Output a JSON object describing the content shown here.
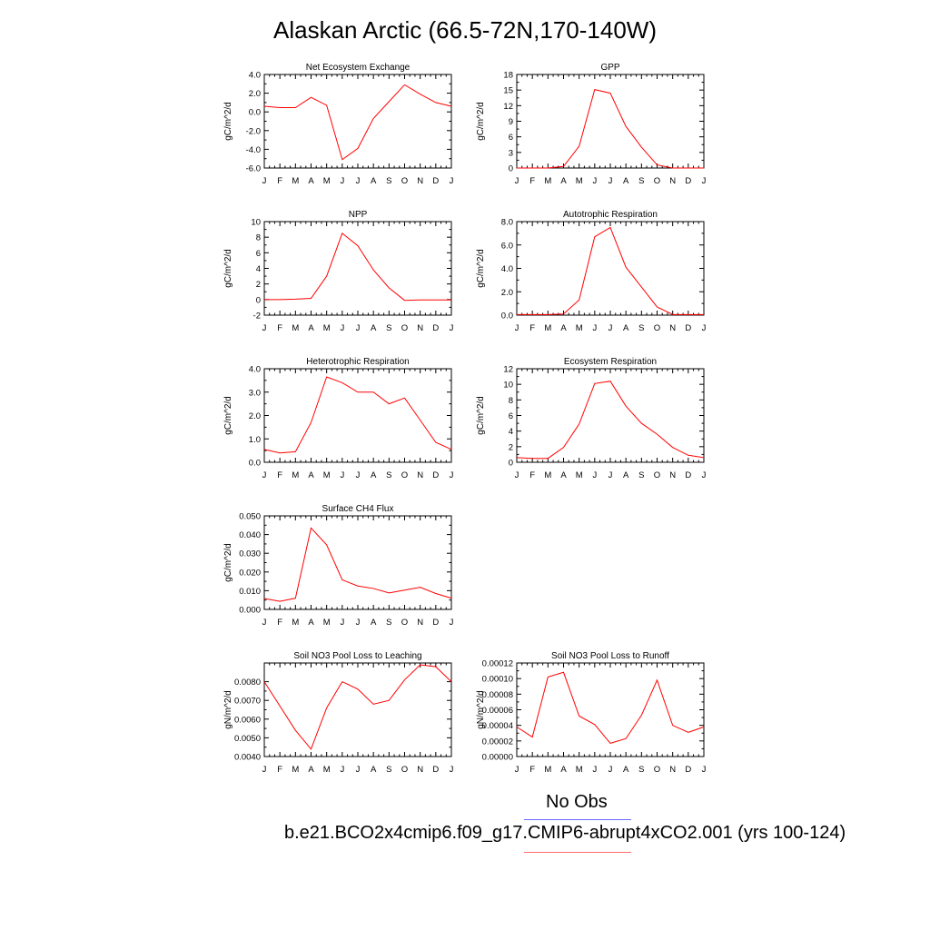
{
  "title": "Alaskan Arctic (66.5-72N,170-140W)",
  "legend": {
    "obs_label": "No Obs",
    "model_label": "b.e21.BCO2x4cmip6.f09_g17.CMIP6-abrupt4xCO2.001 (yrs 100-124)",
    "obs_color": "#6b6bff",
    "model_color": "#ff6b6b"
  },
  "series_color": "#ff0000",
  "chart_data": [
    {
      "type": "line",
      "title": "Net Ecosystem Exchange",
      "ylabel": "gC/m^2/d",
      "x": [
        "J",
        "F",
        "M",
        "A",
        "M",
        "J",
        "J",
        "A",
        "S",
        "O",
        "N",
        "D",
        "J"
      ],
      "values": [
        0.6,
        0.45,
        0.45,
        1.55,
        0.7,
        -5.1,
        -3.9,
        -0.7,
        1.1,
        2.9,
        1.9,
        1.0,
        0.6
      ],
      "ylim": [
        -6.0,
        4.0
      ],
      "yticks": [
        "-6.0",
        "-4.0",
        "-2.0",
        "0.0",
        "2.0",
        "4.0"
      ],
      "ytick_values": [
        -6,
        -4,
        -2,
        0,
        2,
        4
      ]
    },
    {
      "type": "line",
      "title": "GPP",
      "ylabel": "gC/m^2/d",
      "x": [
        "J",
        "F",
        "M",
        "A",
        "M",
        "J",
        "J",
        "A",
        "S",
        "O",
        "N",
        "D",
        "J"
      ],
      "values": [
        0.0,
        0.0,
        0.0,
        0.3,
        4.2,
        15.1,
        14.4,
        8.0,
        4.0,
        0.6,
        0.0,
        0.0,
        0.0
      ],
      "ylim": [
        0,
        18
      ],
      "yticks": [
        "0",
        "3",
        "6",
        "9",
        "12",
        "15",
        "18"
      ],
      "ytick_values": [
        0,
        3,
        6,
        9,
        12,
        15,
        18
      ]
    },
    {
      "type": "line",
      "title": "NPP",
      "ylabel": "gC/m^2/d",
      "x": [
        "J",
        "F",
        "M",
        "A",
        "M",
        "J",
        "J",
        "A",
        "S",
        "O",
        "N",
        "D",
        "J"
      ],
      "values": [
        0.0,
        0.0,
        0.05,
        0.15,
        3.0,
        8.5,
        6.9,
        3.8,
        1.5,
        -0.1,
        -0.05,
        -0.05,
        -0.05
      ],
      "ylim": [
        -2,
        10
      ],
      "yticks": [
        "-2",
        "0",
        "2",
        "4",
        "6",
        "8",
        "10"
      ],
      "ytick_values": [
        -2,
        0,
        2,
        4,
        6,
        8,
        10
      ]
    },
    {
      "type": "line",
      "title": "Autotrophic Respiration",
      "ylabel": "gC/m^2/d",
      "x": [
        "J",
        "F",
        "M",
        "A",
        "M",
        "J",
        "J",
        "A",
        "S",
        "O",
        "N",
        "D",
        "J"
      ],
      "values": [
        0.05,
        0.05,
        0.05,
        0.1,
        1.3,
        6.7,
        7.5,
        4.1,
        2.4,
        0.7,
        0.05,
        0.05,
        0.05
      ],
      "ylim": [
        0,
        8
      ],
      "yticks": [
        "0.0",
        "2.0",
        "4.0",
        "6.0",
        "8.0"
      ],
      "ytick_values": [
        0,
        2,
        4,
        6,
        8
      ]
    },
    {
      "type": "line",
      "title": "Heterotrophic Respiration",
      "ylabel": "gC/m^2/d",
      "x": [
        "J",
        "F",
        "M",
        "A",
        "M",
        "J",
        "J",
        "A",
        "S",
        "O",
        "N",
        "D",
        "J"
      ],
      "values": [
        0.55,
        0.4,
        0.45,
        1.7,
        3.65,
        3.4,
        3.0,
        3.0,
        2.5,
        2.75,
        1.8,
        0.85,
        0.55
      ],
      "ylim": [
        0,
        4
      ],
      "yticks": [
        "0.0",
        "1.0",
        "2.0",
        "3.0",
        "4.0"
      ],
      "ytick_values": [
        0,
        1,
        2,
        3,
        4
      ]
    },
    {
      "type": "line",
      "title": "Ecosystem Respiration",
      "ylabel": "gC/m^2/d",
      "x": [
        "J",
        "F",
        "M",
        "A",
        "M",
        "J",
        "J",
        "A",
        "S",
        "O",
        "N",
        "D",
        "J"
      ],
      "values": [
        0.6,
        0.5,
        0.5,
        1.9,
        4.9,
        10.1,
        10.4,
        7.2,
        5.0,
        3.6,
        1.9,
        0.9,
        0.6
      ],
      "ylim": [
        0,
        12
      ],
      "yticks": [
        "0",
        "2",
        "4",
        "6",
        "8",
        "10",
        "12"
      ],
      "ytick_values": [
        0,
        2,
        4,
        6,
        8,
        10,
        12
      ]
    },
    {
      "type": "line",
      "title": "Surface CH4 Flux",
      "ylabel": "gC/m^2/d",
      "x": [
        "J",
        "F",
        "M",
        "A",
        "M",
        "J",
        "J",
        "A",
        "S",
        "O",
        "N",
        "D",
        "J"
      ],
      "values": [
        0.0058,
        0.0043,
        0.006,
        0.0435,
        0.0345,
        0.0158,
        0.0125,
        0.0112,
        0.0088,
        0.0103,
        0.0118,
        0.0085,
        0.006
      ],
      "ylim": [
        0,
        0.05
      ],
      "yticks": [
        "0.000",
        "0.010",
        "0.020",
        "0.030",
        "0.040",
        "0.050"
      ],
      "ytick_values": [
        0,
        0.01,
        0.02,
        0.03,
        0.04,
        0.05
      ]
    },
    {
      "type": "line",
      "title": "Soil NO3 Pool Loss to Leaching",
      "ylabel": "gN/m^2/d",
      "x": [
        "J",
        "F",
        "M",
        "A",
        "M",
        "J",
        "J",
        "A",
        "S",
        "O",
        "N",
        "D",
        "J"
      ],
      "values": [
        0.008,
        0.0067,
        0.0054,
        0.0044,
        0.0066,
        0.008,
        0.0076,
        0.0068,
        0.007,
        0.0081,
        0.0089,
        0.0088,
        0.008
      ],
      "ylim": [
        0.004,
        0.009
      ],
      "yticks": [
        "0.0040",
        "0.0050",
        "0.0060",
        "0.0070",
        "0.0080"
      ],
      "ytick_values": [
        0.004,
        0.005,
        0.006,
        0.007,
        0.008
      ]
    },
    {
      "type": "line",
      "title": "Soil NO3 Pool Loss to Runoff",
      "ylabel": "gN/m^2/d",
      "x": [
        "J",
        "F",
        "M",
        "A",
        "M",
        "J",
        "J",
        "A",
        "S",
        "O",
        "N",
        "D",
        "J"
      ],
      "values": [
        3.8e-05,
        2.5e-05,
        0.000102,
        0.000108,
        5.2e-05,
        4.1e-05,
        1.7e-05,
        2.3e-05,
        5.3e-05,
        9.8e-05,
        4e-05,
        3.1e-05,
        3.8e-05
      ],
      "ylim": [
        0,
        0.00012
      ],
      "yticks": [
        "0.00000",
        "0.00002",
        "0.00004",
        "0.00006",
        "0.00008",
        "0.00010",
        "0.00012"
      ],
      "ytick_values": [
        0,
        2e-05,
        4e-05,
        6e-05,
        8e-05,
        0.0001,
        0.00012
      ]
    }
  ]
}
